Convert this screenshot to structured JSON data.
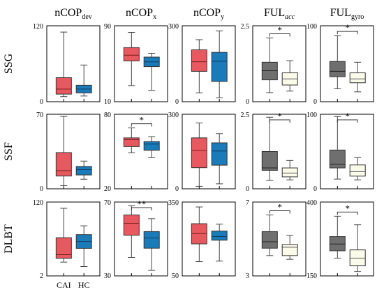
{
  "columns": [
    {
      "main": "nCOP",
      "sub": "dev",
      "subItalic": false
    },
    {
      "main": "nCOP",
      "sub": "x",
      "subItalic": false
    },
    {
      "main": "nCOP",
      "sub": "y",
      "subItalic": false
    },
    {
      "main": "FUL",
      "sub": "acc",
      "subItalic": true
    },
    {
      "main": "FUL",
      "sub": "gyro",
      "subItalic": false
    }
  ],
  "rows": [
    "SSG",
    "SSF",
    "DLBT"
  ],
  "categories": [
    "CAI",
    "HC"
  ],
  "colors": {
    "cai_red": "#e8595f",
    "hc_blue": "#1b7ab8",
    "cai_gray": "#6f6f6f",
    "hc_ivory": "#fbfbea",
    "median": "#7a1f1f",
    "whisker": "#444444"
  },
  "chart_data": [
    {
      "type": "box",
      "row": "SSG",
      "column": "nCOP_dev",
      "ylim": [
        0,
        120
      ],
      "yticks": [
        "0",
        "120"
      ],
      "series": [
        {
          "name": "CAI",
          "min": 8,
          "q1": 12,
          "median": 20,
          "q3": 38,
          "max": 110
        },
        {
          "name": "HC",
          "min": 9,
          "q1": 14,
          "median": 20,
          "q3": 26,
          "max": 58
        }
      ],
      "significance": []
    },
    {
      "type": "box",
      "row": "SSG",
      "column": "nCOP_x",
      "ylim": [
        10,
        90
      ],
      "yticks": [
        "10",
        "90"
      ],
      "series": [
        {
          "name": "CAI",
          "min": 27,
          "q1": 53,
          "median": 59,
          "q3": 67,
          "max": 83
        },
        {
          "name": "HC",
          "min": 22,
          "q1": 47,
          "median": 52,
          "q3": 57,
          "max": 61
        }
      ],
      "significance": []
    },
    {
      "type": "box",
      "row": "SSG",
      "column": "nCOP_y",
      "ylim": [
        0,
        300
      ],
      "yticks": [
        "0",
        "300"
      ],
      "series": [
        {
          "name": "CAI",
          "min": 35,
          "q1": 120,
          "median": 158,
          "q3": 205,
          "max": 245
        },
        {
          "name": "HC",
          "min": 15,
          "q1": 80,
          "median": 160,
          "q3": 195,
          "max": 280
        }
      ],
      "significance": []
    },
    {
      "type": "box",
      "row": "SSG",
      "column": "FUL_acc",
      "ylim": [
        0,
        2.5
      ],
      "yticks": [
        "0",
        "2.5"
      ],
      "series": [
        {
          "name": "CAI",
          "min": 0.3,
          "q1": 0.72,
          "median": 1.02,
          "q3": 1.3,
          "max": 2.1
        },
        {
          "name": "HC",
          "min": 0.35,
          "q1": 0.55,
          "median": 0.75,
          "q3": 0.95,
          "max": 1.35
        }
      ],
      "significance": [
        {
          "label": "*"
        }
      ]
    },
    {
      "type": "box",
      "row": "SSG",
      "column": "FUL_gyro",
      "ylim": [
        0,
        100
      ],
      "yticks": [
        "0",
        "100"
      ],
      "series": [
        {
          "name": "CAI",
          "min": 17,
          "q1": 33,
          "median": 40,
          "q3": 53,
          "max": 87
        },
        {
          "name": "HC",
          "min": 13,
          "q1": 25,
          "median": 30,
          "q3": 38,
          "max": 52
        }
      ],
      "significance": [
        {
          "label": "*"
        }
      ]
    },
    {
      "type": "box",
      "row": "SSF",
      "column": "nCOP_dev",
      "ylim": [
        0,
        70
      ],
      "yticks": [
        "0",
        "70"
      ],
      "series": [
        {
          "name": "CAI",
          "min": 3,
          "q1": 12,
          "median": 17,
          "q3": 34,
          "max": 68
        },
        {
          "name": "HC",
          "min": 9,
          "q1": 13,
          "median": 18,
          "q3": 21,
          "max": 26
        }
      ],
      "significance": []
    },
    {
      "type": "box",
      "row": "SSF",
      "column": "nCOP_x",
      "ylim": [
        20,
        80
      ],
      "yticks": [
        "20",
        "80"
      ],
      "series": [
        {
          "name": "CAI",
          "min": 49,
          "q1": 54,
          "median": 59.5,
          "q3": 61,
          "max": 69
        },
        {
          "name": "HC",
          "min": 45,
          "q1": 51,
          "median": 56,
          "q3": 58,
          "max": 62
        }
      ],
      "significance": [
        {
          "label": "*"
        }
      ]
    },
    {
      "type": "box",
      "row": "SSF",
      "column": "nCOP_y",
      "ylim": [
        0,
        300
      ],
      "yticks": [
        "0",
        "300"
      ],
      "series": [
        {
          "name": "CAI",
          "min": 10,
          "q1": 85,
          "median": 155,
          "q3": 205,
          "max": 265
        },
        {
          "name": "HC",
          "min": 20,
          "q1": 95,
          "median": 152,
          "q3": 185,
          "max": 222
        }
      ],
      "significance": []
    },
    {
      "type": "box",
      "row": "SSF",
      "column": "FUL_acc",
      "ylim": [
        0,
        2.5
      ],
      "yticks": [
        "0",
        "2.5"
      ],
      "series": [
        {
          "name": "CAI",
          "min": 0.28,
          "q1": 0.62,
          "median": 0.7,
          "q3": 1.25,
          "max": 2.4
        },
        {
          "name": "HC",
          "min": 0.3,
          "q1": 0.4,
          "median": 0.53,
          "q3": 0.7,
          "max": 0.95
        }
      ],
      "significance": [
        {
          "label": "*"
        }
      ]
    },
    {
      "type": "box",
      "row": "SSF",
      "column": "FUL_gyro",
      "ylim": [
        0,
        100
      ],
      "yticks": [
        "0",
        "100"
      ],
      "series": [
        {
          "name": "CAI",
          "min": 13,
          "q1": 28,
          "median": 33,
          "q3": 52,
          "max": 97
        },
        {
          "name": "HC",
          "min": 12,
          "q1": 17,
          "median": 23,
          "q3": 32,
          "max": 42
        }
      ],
      "significance": [
        {
          "label": "*"
        }
      ]
    },
    {
      "type": "box",
      "row": "DLBT",
      "column": "nCOP_dev",
      "ylim": [
        2,
        120
      ],
      "yticks": [
        "2",
        "120"
      ],
      "series": [
        {
          "name": "CAI",
          "min": 24,
          "q1": 30,
          "median": 36,
          "q3": 63,
          "max": 110
        },
        {
          "name": "HC",
          "min": 17,
          "q1": 46,
          "median": 57,
          "q3": 68,
          "max": 82
        }
      ],
      "significance": []
    },
    {
      "type": "box",
      "row": "DLBT",
      "column": "nCOP_x",
      "ylim": [
        30,
        70
      ],
      "yticks": [
        "30",
        "70"
      ],
      "series": [
        {
          "name": "CAI",
          "min": 40,
          "q1": 52,
          "median": 58.5,
          "q3": 63,
          "max": 68
        },
        {
          "name": "HC",
          "min": 33,
          "q1": 45,
          "median": 50.5,
          "q3": 54,
          "max": 61
        }
      ],
      "significance": [
        {
          "label": "**"
        }
      ]
    },
    {
      "type": "box",
      "row": "DLBT",
      "column": "nCOP_y",
      "ylim": [
        50,
        350
      ],
      "yticks": [
        "50",
        "350"
      ],
      "series": [
        {
          "name": "CAI",
          "min": 108,
          "q1": 180,
          "median": 222,
          "q3": 262,
          "max": 330
        },
        {
          "name": "HC",
          "min": 110,
          "q1": 195,
          "median": 210,
          "q3": 232,
          "max": 260
        }
      ],
      "significance": []
    },
    {
      "type": "box",
      "row": "DLBT",
      "column": "FUL_acc",
      "ylim": [
        3,
        7
      ],
      "yticks": [
        "3",
        "7"
      ],
      "series": [
        {
          "name": "CAI",
          "min": 4.1,
          "q1": 4.5,
          "median": 4.85,
          "q3": 5.4,
          "max": 6.3
        },
        {
          "name": "HC",
          "min": 3.9,
          "q1": 4.1,
          "median": 4.55,
          "q3": 4.7,
          "max": 5.2
        }
      ],
      "significance": [
        {
          "label": "*"
        }
      ]
    },
    {
      "type": "box",
      "row": "DLBT",
      "column": "FUL_gyro",
      "ylim": [
        150,
        400
      ],
      "yticks": [
        "150",
        "400"
      ],
      "series": [
        {
          "name": "CAI",
          "min": 210,
          "q1": 235,
          "median": 258,
          "q3": 283,
          "max": 352
        },
        {
          "name": "HC",
          "min": 165,
          "q1": 184,
          "median": 210,
          "q3": 238,
          "max": 323
        }
      ],
      "significance": [
        {
          "label": "*"
        }
      ]
    }
  ]
}
